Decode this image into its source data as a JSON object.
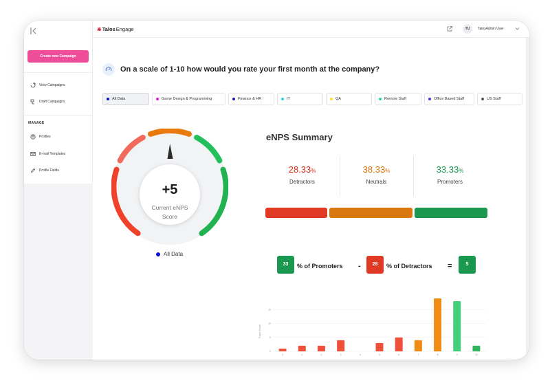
{
  "sidebar": {
    "collapse_icon": "collapse-left-icon",
    "create_button": "Create new Campaign",
    "items": [
      {
        "label": "View Campaigns",
        "icon": "campaigns-icon"
      },
      {
        "label": "Draft Campaigns",
        "icon": "draft-icon"
      }
    ],
    "section": "MANAGE",
    "manage_items": [
      {
        "label": "Profiles",
        "icon": "profile-icon"
      },
      {
        "label": "E-mail Templates",
        "icon": "mail-icon"
      },
      {
        "label": "Profile Fields",
        "icon": "pencil-icon"
      }
    ]
  },
  "header": {
    "logo_a": "Talos",
    "logo_b": "Engage",
    "avatar": "TU",
    "user": "TalosAdmin User"
  },
  "question": "On a scale of 1-10 how would you rate your first month at the company?",
  "filters": [
    {
      "label": "All Data",
      "color": "#0b14d6",
      "active": true
    },
    {
      "label": "Game Design & Programming",
      "color": "#e21bd0"
    },
    {
      "label": "Finance & HR",
      "color": "#1a1fb5"
    },
    {
      "label": "IT",
      "color": "#2ad4ef"
    },
    {
      "label": "QA",
      "color": "#f5e23a"
    },
    {
      "label": "Remote Staff",
      "color": "#28d79a"
    },
    {
      "label": "Office Based Staff",
      "color": "#5431d6"
    },
    {
      "label": "US Staff",
      "color": "#555560"
    }
  ],
  "gauge": {
    "score": "+5",
    "label_line1": "Current eNPS",
    "label_line2": "Score",
    "legend": "All Data",
    "colors": {
      "red": "#f0422a",
      "orange": "#e8790d",
      "green": "#22b251",
      "light_red": "#f26a5b",
      "light_green": "#22c05a"
    }
  },
  "summary": {
    "title": "eNPS Summary",
    "stats": [
      {
        "value": "28.33",
        "pct": "%",
        "label": "Detractors",
        "color": "#d72c17"
      },
      {
        "value": "38.33",
        "pct": "%",
        "label": "Neutrals",
        "color": "#d8700a"
      },
      {
        "value": "33.33",
        "pct": "%",
        "label": "Promoters",
        "color": "#17964c"
      }
    ],
    "bar_colors": [
      "#e03a24",
      "#d8780f",
      "#1b9850"
    ],
    "bar_fractions": [
      0.2833,
      0.3833,
      0.3333
    ],
    "formula": {
      "promoters": "33",
      "promoters_label": "% of Promoters",
      "minus": "-",
      "detractors": "28",
      "detractors_label": "% of Detractors",
      "equals": "=",
      "result": "5"
    }
  },
  "chart_data": {
    "type": "bar",
    "categories": [
      "0",
      "1",
      "2",
      "3",
      "4",
      "5",
      "6",
      "7",
      "8",
      "9",
      "10"
    ],
    "values": [
      1,
      2,
      2,
      4,
      0,
      3,
      5,
      4,
      19,
      18,
      2
    ],
    "colors": [
      "#f0503a",
      "#f0503a",
      "#f0503a",
      "#f0503a",
      "#f0503a",
      "#f0503a",
      "#f0503a",
      "#f08b14",
      "#f08b14",
      "#44cf7a",
      "#2fb55c"
    ],
    "ylabel": "Player Count",
    "yticks": [
      "0",
      "5",
      "10",
      "15"
    ],
    "ylim": [
      0,
      19
    ]
  }
}
